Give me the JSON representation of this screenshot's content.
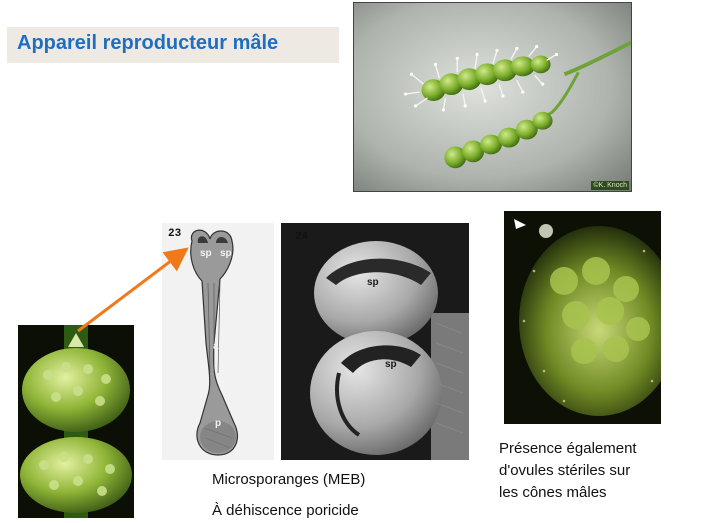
{
  "title": "Appareil reproducteur mâle",
  "photo_credit": "©K. Knoch",
  "sem_panel_left": {
    "number": "23",
    "labels": [
      "sp",
      "sp",
      "a",
      "p"
    ]
  },
  "sem_panel_right": {
    "number": "24",
    "labels": [
      "sp",
      "sp"
    ]
  },
  "captions": {
    "meb_line1": "Microsporanges (MEB)",
    "meb_line2": "À déhiscence poricide",
    "ovules_lines": [
      "Présence également",
      "d'ovules stériles sur",
      "les cônes mâles"
    ]
  },
  "colors": {
    "title_text": "#1f6fc0",
    "title_bg": "#efe9e3",
    "arrow": "#f07a1a"
  }
}
